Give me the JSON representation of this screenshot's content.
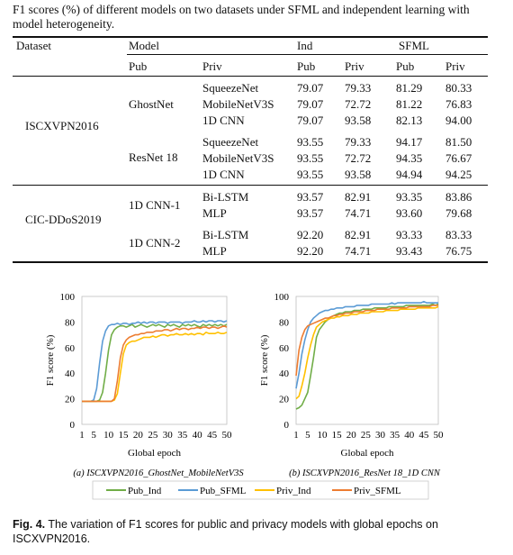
{
  "table": {
    "caption": "F1 scores (%) of different models on two datasets under SFML and independent learning with model heterogeneity.",
    "headers": {
      "dataset": "Dataset",
      "model": "Model",
      "ind": "Ind",
      "sfml": "SFML",
      "pub": "Pub",
      "priv": "Priv",
      "ind_pub": "Pub",
      "ind_priv": "Priv",
      "sfml_pub": "Pub",
      "sfml_priv": "Priv"
    },
    "datasets": [
      {
        "name": "ISCXVPN2016",
        "groups": [
          {
            "pub": "GhostNet",
            "rows": [
              {
                "priv": "SqueezeNet",
                "ind_pub": "79.07",
                "ind_priv": "79.33",
                "sfml_pub": "81.29",
                "sfml_priv": "80.33"
              },
              {
                "priv": "MobileNetV3S",
                "ind_pub": "79.07",
                "ind_priv": "72.72",
                "sfml_pub": "81.22",
                "sfml_priv": "76.83"
              },
              {
                "priv": "1D CNN",
                "ind_pub": "79.07",
                "ind_priv": "93.58",
                "sfml_pub": "82.13",
                "sfml_priv": "94.00"
              }
            ]
          },
          {
            "pub": "ResNet 18",
            "rows": [
              {
                "priv": "SqueezeNet",
                "ind_pub": "93.55",
                "ind_priv": "79.33",
                "sfml_pub": "94.17",
                "sfml_priv": "81.50"
              },
              {
                "priv": "MobileNetV3S",
                "ind_pub": "93.55",
                "ind_priv": "72.72",
                "sfml_pub": "94.35",
                "sfml_priv": "76.67"
              },
              {
                "priv": "1D CNN",
                "ind_pub": "93.55",
                "ind_priv": "93.58",
                "sfml_pub": "94.94",
                "sfml_priv": "94.25"
              }
            ]
          }
        ]
      },
      {
        "name": "CIC-DDoS2019",
        "groups": [
          {
            "pub": "1D CNN-1",
            "rows": [
              {
                "priv": "Bi-LSTM",
                "ind_pub": "93.57",
                "ind_priv": "82.91",
                "sfml_pub": "93.35",
                "sfml_priv": "83.86"
              },
              {
                "priv": "MLP",
                "ind_pub": "93.57",
                "ind_priv": "74.71",
                "sfml_pub": "93.60",
                "sfml_priv": "79.68"
              }
            ]
          },
          {
            "pub": "1D CNN-2",
            "rows": [
              {
                "priv": "Bi-LSTM",
                "ind_pub": "92.20",
                "ind_priv": "82.91",
                "sfml_pub": "93.33",
                "sfml_priv": "83.33"
              },
              {
                "priv": "MLP",
                "ind_pub": "92.20",
                "ind_priv": "74.71",
                "sfml_pub": "93.43",
                "sfml_priv": "76.75"
              }
            ]
          }
        ]
      }
    ]
  },
  "figure": {
    "label": "Fig. 4.",
    "caption": "The variation of F1 scores for public and privacy models with global epochs on ISCXVPN2016.",
    "legend": [
      "Pub_Ind",
      "Pub_SFML",
      "Priv_Ind",
      "Priv_SFML"
    ],
    "colors": {
      "Pub_Ind": "#70ad47",
      "Pub_SFML": "#5b9bd5",
      "Priv_Ind": "#ffc000",
      "Priv_SFML": "#ed7d31"
    }
  },
  "chart_data": [
    {
      "type": "line",
      "subcaption": "(a) ISCXVPN2016_GhostNet_MobileNetV3S",
      "xlabel": "Global epoch",
      "ylabel": "F1 score (%)",
      "xlim": [
        1,
        50
      ],
      "ylim": [
        0,
        100
      ],
      "xticks": [
        1,
        5,
        10,
        15,
        20,
        25,
        30,
        35,
        40,
        45,
        50
      ],
      "yticks": [
        0,
        20,
        40,
        60,
        80,
        100
      ],
      "x": [
        1,
        2,
        3,
        4,
        5,
        6,
        7,
        8,
        9,
        10,
        11,
        12,
        13,
        14,
        15,
        16,
        17,
        18,
        19,
        20,
        21,
        22,
        23,
        24,
        25,
        26,
        27,
        28,
        29,
        30,
        31,
        32,
        33,
        34,
        35,
        36,
        37,
        38,
        39,
        40,
        41,
        42,
        43,
        44,
        45,
        46,
        47,
        48,
        49,
        50
      ],
      "series": [
        {
          "name": "Pub_Ind",
          "values": [
            18,
            18,
            18,
            18,
            18,
            18,
            19,
            25,
            40,
            58,
            70,
            74,
            76,
            77,
            77,
            76,
            77,
            78,
            76,
            77,
            78,
            77,
            76,
            77,
            78,
            77,
            78,
            77,
            76,
            78,
            77,
            78,
            77,
            76,
            78,
            77,
            78,
            77,
            78,
            77,
            76,
            78,
            77,
            78,
            77,
            78,
            77,
            78,
            77,
            78
          ]
        },
        {
          "name": "Pub_SFML",
          "values": [
            18,
            18,
            18,
            18,
            19,
            28,
            48,
            65,
            73,
            77,
            78,
            78,
            79,
            78,
            79,
            79,
            78,
            79,
            79,
            80,
            79,
            80,
            79,
            80,
            80,
            79,
            80,
            80,
            80,
            79,
            80,
            80,
            80,
            80,
            79,
            80,
            80,
            80,
            81,
            80,
            80,
            81,
            80,
            81,
            81,
            80,
            81,
            81,
            80,
            81
          ]
        },
        {
          "name": "Priv_Ind",
          "values": [
            18,
            18,
            18,
            18,
            18,
            18,
            18,
            18,
            18,
            18,
            18,
            19,
            24,
            40,
            55,
            62,
            64,
            65,
            65,
            66,
            67,
            68,
            68,
            68,
            69,
            68,
            69,
            70,
            70,
            69,
            70,
            70,
            71,
            70,
            70,
            71,
            70,
            71,
            70,
            71,
            71,
            70,
            72,
            71,
            71,
            71,
            72,
            71,
            71,
            72
          ]
        },
        {
          "name": "Priv_SFML",
          "values": [
            18,
            18,
            18,
            18,
            18,
            18,
            18,
            18,
            18,
            18,
            18,
            20,
            34,
            52,
            62,
            66,
            68,
            69,
            70,
            70,
            71,
            71,
            72,
            72,
            72,
            73,
            73,
            73,
            74,
            74,
            73,
            74,
            75,
            74,
            75,
            75,
            74,
            75,
            75,
            76,
            75,
            76,
            76,
            75,
            76,
            76,
            75,
            76,
            77,
            76
          ]
        }
      ]
    },
    {
      "type": "line",
      "subcaption": "(b) ISCXVPN2016_ResNet 18_1D CNN",
      "xlabel": "Global epoch",
      "ylabel": "F1 score (%)",
      "xlim": [
        1,
        50
      ],
      "ylim": [
        0,
        100
      ],
      "xticks": [
        1,
        5,
        10,
        15,
        20,
        25,
        30,
        35,
        40,
        45,
        50
      ],
      "yticks": [
        0,
        20,
        40,
        60,
        80,
        100
      ],
      "x": [
        1,
        2,
        3,
        4,
        5,
        6,
        7,
        8,
        9,
        10,
        11,
        12,
        13,
        14,
        15,
        16,
        17,
        18,
        19,
        20,
        21,
        22,
        23,
        24,
        25,
        26,
        27,
        28,
        29,
        30,
        31,
        32,
        33,
        34,
        35,
        36,
        37,
        38,
        39,
        40,
        41,
        42,
        43,
        44,
        45,
        46,
        47,
        48,
        49,
        50
      ],
      "series": [
        {
          "name": "Pub_Ind",
          "values": [
            12,
            13,
            15,
            20,
            25,
            38,
            52,
            68,
            74,
            77,
            80,
            82,
            84,
            85,
            86,
            87,
            87,
            88,
            88,
            88,
            89,
            89,
            89,
            90,
            90,
            90,
            90,
            91,
            91,
            91,
            91,
            91,
            92,
            92,
            92,
            92,
            92,
            92,
            93,
            93,
            93,
            93,
            93,
            93,
            93,
            93,
            93,
            94,
            93,
            94
          ]
        },
        {
          "name": "Pub_SFML",
          "values": [
            28,
            40,
            55,
            66,
            74,
            80,
            83,
            85,
            87,
            88,
            89,
            89,
            90,
            90,
            91,
            91,
            91,
            92,
            92,
            92,
            92,
            93,
            93,
            93,
            93,
            93,
            94,
            94,
            94,
            94,
            94,
            94,
            94,
            95,
            94,
            95,
            95,
            95,
            95,
            95,
            95,
            95,
            95,
            95,
            96,
            95,
            95,
            95,
            95,
            95
          ]
        },
        {
          "name": "Priv_Ind",
          "values": [
            20,
            22,
            30,
            40,
            52,
            62,
            70,
            76,
            78,
            80,
            81,
            82,
            83,
            83,
            84,
            84,
            85,
            85,
            85,
            86,
            86,
            86,
            87,
            87,
            87,
            87,
            88,
            88,
            88,
            88,
            88,
            89,
            89,
            89,
            89,
            89,
            90,
            90,
            90,
            90,
            90,
            90,
            91,
            91,
            91,
            91,
            91,
            91,
            91,
            92
          ]
        },
        {
          "name": "Priv_SFML",
          "values": [
            38,
            58,
            68,
            74,
            77,
            78,
            79,
            80,
            81,
            82,
            83,
            83,
            84,
            85,
            85,
            86,
            86,
            87,
            87,
            87,
            88,
            88,
            88,
            88,
            89,
            89,
            89,
            89,
            90,
            90,
            90,
            90,
            90,
            91,
            91,
            91,
            91,
            91,
            91,
            92,
            92,
            92,
            92,
            92,
            92,
            92,
            92,
            93,
            93,
            93
          ]
        }
      ]
    }
  ]
}
